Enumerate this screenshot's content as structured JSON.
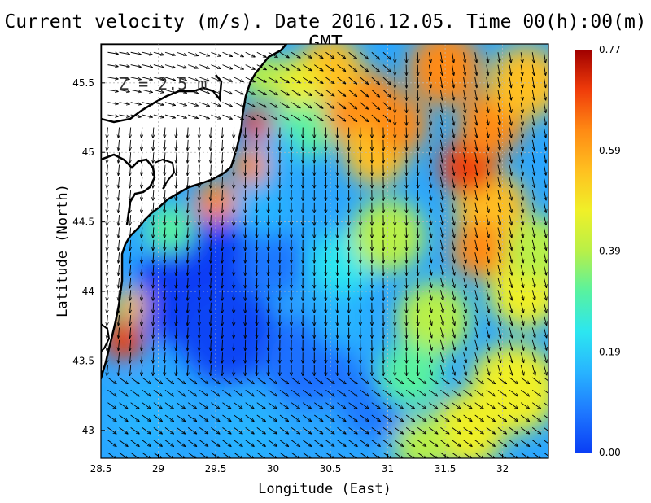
{
  "title": "Current velocity (m/s). Date 2016.12.05. Time 00(h):00(m) GMT",
  "depth_label": "Z = 2.5 m",
  "x_axis": {
    "label": "Longitude (East)",
    "range": [
      28.5,
      32.4
    ],
    "ticks": [
      {
        "value": 28.5,
        "label": "28.5"
      },
      {
        "value": 29,
        "label": "29"
      },
      {
        "value": 29.5,
        "label": "29.5"
      },
      {
        "value": 30,
        "label": "30"
      },
      {
        "value": 30.5,
        "label": "30.5"
      },
      {
        "value": 31,
        "label": "31"
      },
      {
        "value": 31.5,
        "label": "31.5"
      },
      {
        "value": 32,
        "label": "32"
      }
    ]
  },
  "y_axis": {
    "label": "Latitude (North)",
    "range": [
      42.8,
      45.78
    ],
    "ticks": [
      {
        "value": 43,
        "label": "43"
      },
      {
        "value": 43.5,
        "label": "43.5"
      },
      {
        "value": 44,
        "label": "44"
      },
      {
        "value": 44.5,
        "label": "44.5"
      },
      {
        "value": 45,
        "label": "45"
      },
      {
        "value": 45.5,
        "label": "45.5"
      }
    ]
  },
  "colorbar": {
    "min": 0.0,
    "max": 0.77,
    "labels": [
      "0.77",
      "0.59",
      "0.39",
      "0.19",
      "0.00"
    ],
    "colors": [
      "#0a3ef5",
      "#1e78ff",
      "#28b4ff",
      "#2ce6f0",
      "#58f2a0",
      "#b8f048",
      "#f0f028",
      "#ffc020",
      "#ff8a14",
      "#f03c0a",
      "#a00000"
    ]
  },
  "grid": true,
  "colors": {
    "land": "#ffffff",
    "coast": "#000000",
    "arrow": "#000000"
  }
}
